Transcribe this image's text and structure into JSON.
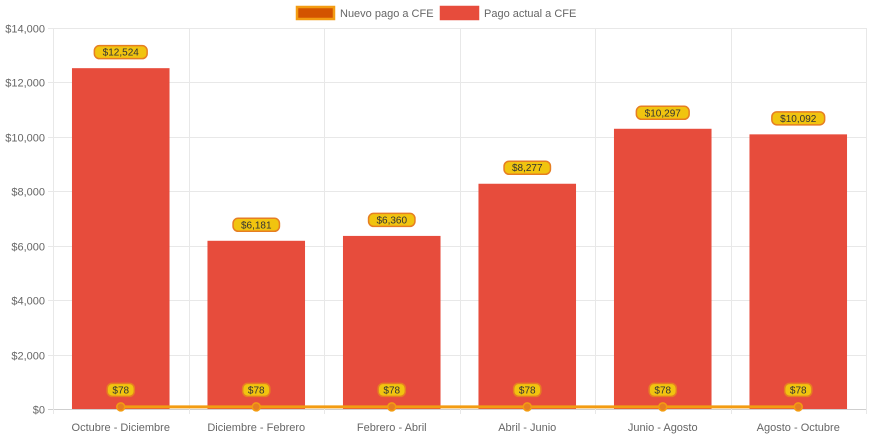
{
  "chart_data": {
    "type": "bar",
    "categories": [
      "Octubre - Diciembre",
      "Diciembre - Febrero",
      "Febrero - Abril",
      "Abril - Junio",
      "Junio - Agosto",
      "Agosto - Octubre"
    ],
    "series": [
      {
        "name": "Nuevo pago a CFE",
        "type": "line",
        "values": [
          78,
          78,
          78,
          78,
          78,
          78
        ],
        "labels": [
          "$78",
          "$78",
          "$78",
          "$78",
          "$78",
          "$78"
        ],
        "color": "#f39c12",
        "fill": "#d35400"
      },
      {
        "name": "Pago actual a CFE",
        "type": "bar",
        "values": [
          12524,
          6181,
          6360,
          8277,
          10297,
          10092
        ],
        "labels": [
          "$12,524",
          "$6,181",
          "$6,360",
          "$8,277",
          "$10,297",
          "$10,092"
        ],
        "color": "#e74c3c"
      }
    ],
    "ylim": [
      0,
      14000
    ],
    "yticks": [
      0,
      2000,
      4000,
      6000,
      8000,
      10000,
      12000,
      14000
    ],
    "ytick_labels": [
      "$0",
      "$2,000",
      "$4,000",
      "$6,000",
      "$8,000",
      "$10,000",
      "$12,000",
      "$14,000"
    ],
    "legend_position": "top",
    "grid": true,
    "label_badge_color": "#f1c40f",
    "label_badge_border": "#e67e22"
  }
}
